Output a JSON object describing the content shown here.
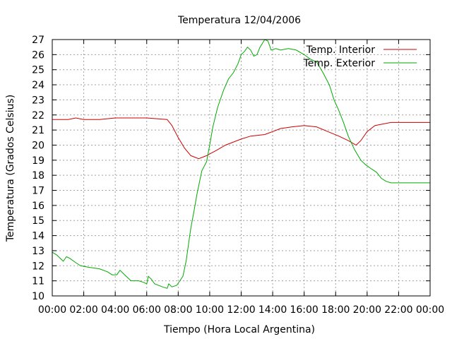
{
  "chart_data": {
    "type": "line",
    "title": "Temperatura 12/04/2006",
    "xlabel": "Tiempo (Hora Local Argentina)",
    "ylabel": "Temperatura (Grados Celsius)",
    "x_unit": "hours",
    "xlim": [
      0,
      24
    ],
    "ylim": [
      10,
      27
    ],
    "grid": true,
    "legend_position": "top-right",
    "x_ticks": [
      {
        "value": 0,
        "label": "00:00"
      },
      {
        "value": 2,
        "label": "02:00"
      },
      {
        "value": 4,
        "label": "04:00"
      },
      {
        "value": 6,
        "label": "06:00"
      },
      {
        "value": 8,
        "label": "08:00"
      },
      {
        "value": 10,
        "label": "10:00"
      },
      {
        "value": 12,
        "label": "12:00"
      },
      {
        "value": 14,
        "label": "14:00"
      },
      {
        "value": 16,
        "label": "16:00"
      },
      {
        "value": 18,
        "label": "18:00"
      },
      {
        "value": 20,
        "label": "20:00"
      },
      {
        "value": 22,
        "label": "22:00"
      },
      {
        "value": 24,
        "label": "00:00"
      }
    ],
    "y_ticks": [
      {
        "value": 10,
        "label": "10"
      },
      {
        "value": 11,
        "label": "11"
      },
      {
        "value": 12,
        "label": "12"
      },
      {
        "value": 13,
        "label": "13"
      },
      {
        "value": 14,
        "label": "14"
      },
      {
        "value": 15,
        "label": "15"
      },
      {
        "value": 16,
        "label": "16"
      },
      {
        "value": 17,
        "label": "17"
      },
      {
        "value": 18,
        "label": "18"
      },
      {
        "value": 19,
        "label": "19"
      },
      {
        "value": 20,
        "label": "20"
      },
      {
        "value": 21,
        "label": "21"
      },
      {
        "value": 22,
        "label": "22"
      },
      {
        "value": 23,
        "label": "23"
      },
      {
        "value": 24,
        "label": "24"
      },
      {
        "value": 25,
        "label": "25"
      },
      {
        "value": 26,
        "label": "26"
      },
      {
        "value": 27,
        "label": "27"
      }
    ],
    "series": [
      {
        "name": "Temp. Interior",
        "color": "#cc0000",
        "points": [
          [
            0,
            21.7
          ],
          [
            1,
            21.7
          ],
          [
            1.5,
            21.8
          ],
          [
            2,
            21.7
          ],
          [
            3,
            21.7
          ],
          [
            4,
            21.8
          ],
          [
            5,
            21.8
          ],
          [
            6,
            21.8
          ],
          [
            7.3,
            21.7
          ],
          [
            7.6,
            21.3
          ],
          [
            8,
            20.5
          ],
          [
            8.4,
            19.8
          ],
          [
            8.8,
            19.3
          ],
          [
            9.3,
            19.1
          ],
          [
            9.8,
            19.3
          ],
          [
            10.5,
            19.7
          ],
          [
            11,
            20.0
          ],
          [
            12,
            20.4
          ],
          [
            12.6,
            20.6
          ],
          [
            13.5,
            20.7
          ],
          [
            14,
            20.9
          ],
          [
            14.5,
            21.1
          ],
          [
            15.2,
            21.2
          ],
          [
            16,
            21.3
          ],
          [
            16.8,
            21.2
          ],
          [
            17.5,
            20.9
          ],
          [
            18.2,
            20.6
          ],
          [
            18.8,
            20.3
          ],
          [
            19.3,
            20.0
          ],
          [
            19.6,
            20.3
          ],
          [
            20,
            20.9
          ],
          [
            20.5,
            21.3
          ],
          [
            21,
            21.4
          ],
          [
            21.5,
            21.5
          ],
          [
            22,
            21.5
          ],
          [
            24,
            21.5
          ]
        ]
      },
      {
        "name": "Temp. Exterior",
        "color": "#00aa00",
        "points": [
          [
            0,
            12.9
          ],
          [
            0.3,
            12.7
          ],
          [
            0.5,
            12.5
          ],
          [
            0.7,
            12.3
          ],
          [
            0.9,
            12.6
          ],
          [
            1.1,
            12.5
          ],
          [
            1.5,
            12.2
          ],
          [
            1.8,
            12.0
          ],
          [
            2.3,
            11.9
          ],
          [
            3,
            11.8
          ],
          [
            3.5,
            11.6
          ],
          [
            3.8,
            11.4
          ],
          [
            4.1,
            11.4
          ],
          [
            4.3,
            11.7
          ],
          [
            4.6,
            11.4
          ],
          [
            5,
            11.0
          ],
          [
            5.5,
            11.0
          ],
          [
            5.8,
            10.9
          ],
          [
            6,
            10.8
          ],
          [
            6.1,
            11.3
          ],
          [
            6.3,
            11.1
          ],
          [
            6.5,
            10.8
          ],
          [
            7,
            10.6
          ],
          [
            7.3,
            10.5
          ],
          [
            7.4,
            10.8
          ],
          [
            7.6,
            10.6
          ],
          [
            7.9,
            10.7
          ],
          [
            8.1,
            11.0
          ],
          [
            8.3,
            11.3
          ],
          [
            8.5,
            12.3
          ],
          [
            8.8,
            14.5
          ],
          [
            9,
            15.6
          ],
          [
            9.2,
            16.8
          ],
          [
            9.5,
            18.3
          ],
          [
            9.8,
            18.9
          ],
          [
            10,
            20.0
          ],
          [
            10.2,
            21.2
          ],
          [
            10.5,
            22.5
          ],
          [
            10.9,
            23.7
          ],
          [
            11.2,
            24.4
          ],
          [
            11.5,
            24.8
          ],
          [
            11.8,
            25.4
          ],
          [
            12,
            26.0
          ],
          [
            12.2,
            26.2
          ],
          [
            12.4,
            26.5
          ],
          [
            12.6,
            26.3
          ],
          [
            12.8,
            25.9
          ],
          [
            13,
            26.0
          ],
          [
            13.2,
            26.5
          ],
          [
            13.5,
            27.0
          ],
          [
            13.7,
            26.9
          ],
          [
            13.9,
            26.3
          ],
          [
            14.2,
            26.4
          ],
          [
            14.5,
            26.3
          ],
          [
            15,
            26.4
          ],
          [
            15.5,
            26.3
          ],
          [
            16,
            26.0
          ],
          [
            16.4,
            25.7
          ],
          [
            16.8,
            25.5
          ],
          [
            17.2,
            24.8
          ],
          [
            17.6,
            24.0
          ],
          [
            17.9,
            23.0
          ],
          [
            18.2,
            22.3
          ],
          [
            18.5,
            21.5
          ],
          [
            18.8,
            20.6
          ],
          [
            19.2,
            19.7
          ],
          [
            19.6,
            19.0
          ],
          [
            19.9,
            18.7
          ],
          [
            20.3,
            18.4
          ],
          [
            20.6,
            18.2
          ],
          [
            20.9,
            17.8
          ],
          [
            21.2,
            17.6
          ],
          [
            21.5,
            17.5
          ],
          [
            24,
            17.5
          ]
        ]
      }
    ]
  }
}
